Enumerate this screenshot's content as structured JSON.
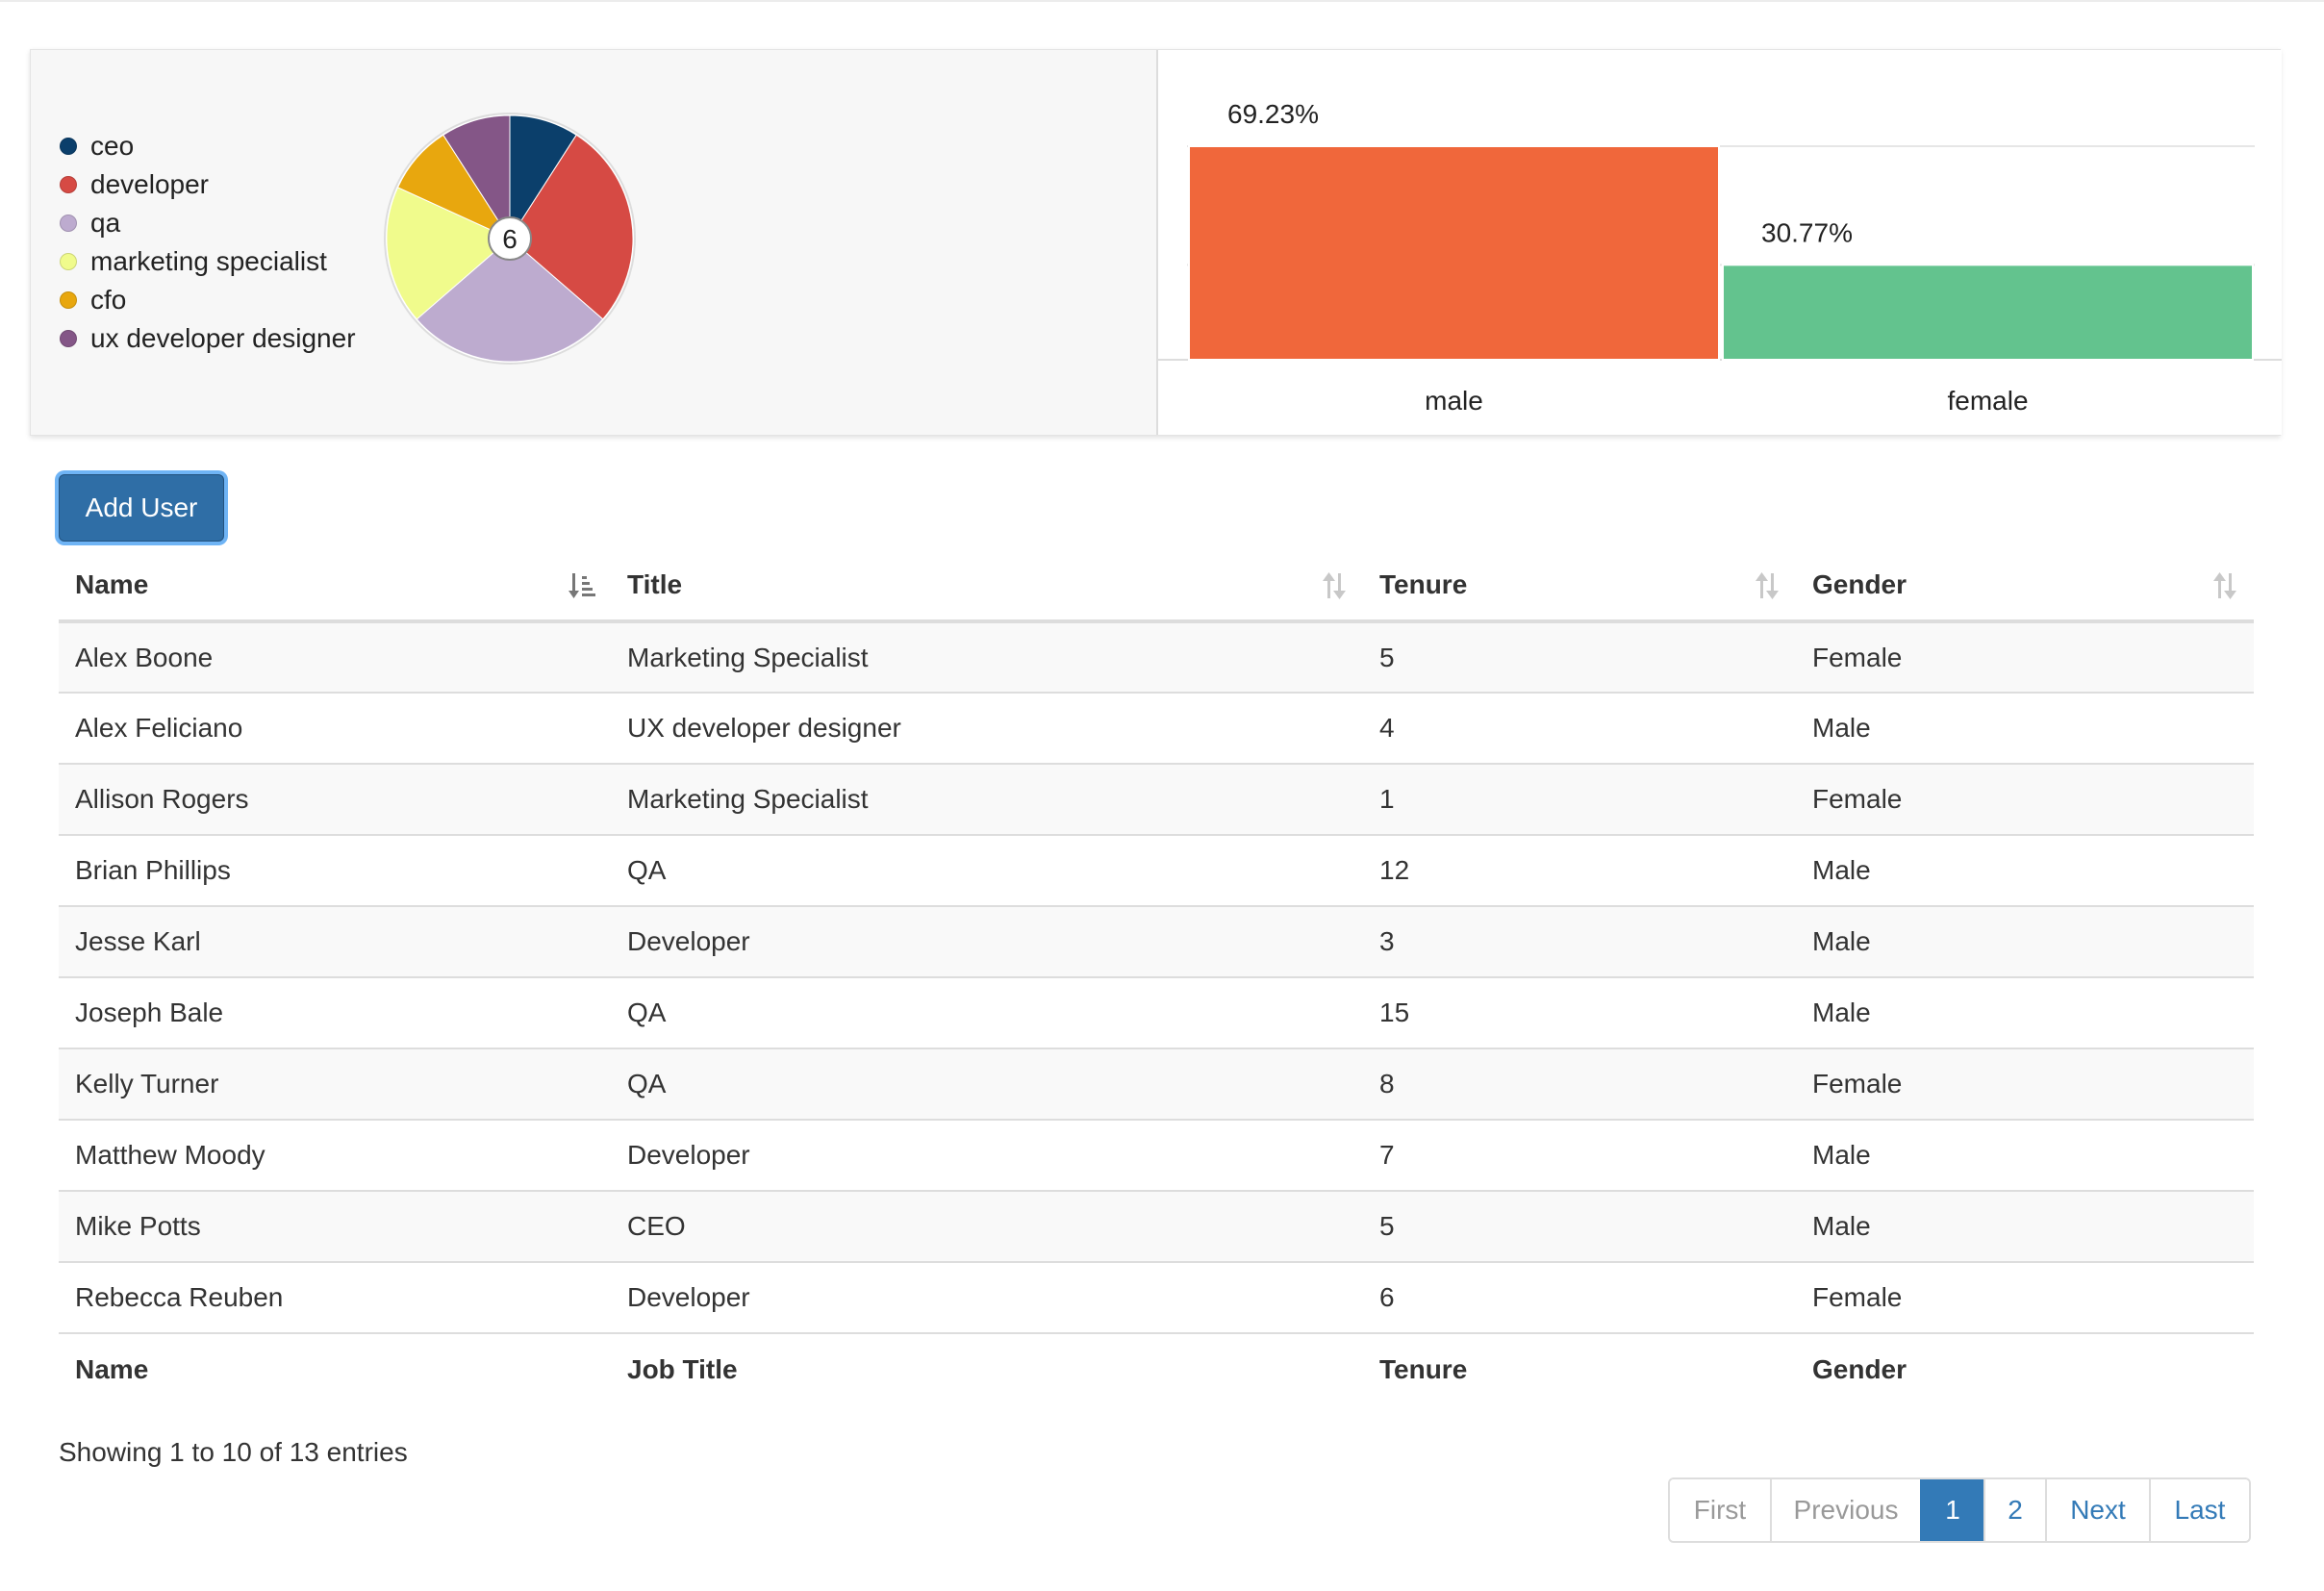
{
  "pie_chart": {
    "center_label": "6",
    "legend": [
      {
        "label": "ceo",
        "color": "#0b3f6b"
      },
      {
        "label": "developer",
        "color": "#d64a44"
      },
      {
        "label": "qa",
        "color": "#bdabcf"
      },
      {
        "label": "marketing specialist",
        "color": "#f0fb8c"
      },
      {
        "label": "cfo",
        "color": "#e8a70e"
      },
      {
        "label": "ux developer designer",
        "color": "#845687"
      }
    ]
  },
  "chart_data": [
    {
      "type": "pie",
      "center_label": "6",
      "categories": [
        "ceo",
        "developer",
        "qa",
        "marketing specialist",
        "cfo",
        "ux developer designer"
      ],
      "values": [
        1,
        3,
        3,
        2,
        1,
        1
      ],
      "colors": [
        "#0b3f6b",
        "#d64a44",
        "#bdabcf",
        "#f0fb8c",
        "#e8a70e",
        "#845687"
      ],
      "legend": "left"
    },
    {
      "type": "bar",
      "categories": [
        "male",
        "female"
      ],
      "values": [
        69.23,
        30.77
      ],
      "data_labels": [
        "69.23%",
        "30.77%"
      ],
      "colors": [
        "#f0673b",
        "#63c38e"
      ],
      "ylim": [
        0,
        100
      ],
      "grid": true
    }
  ],
  "toolbar": {
    "add_user_label": "Add User"
  },
  "table": {
    "headers": [
      "Name",
      "Title",
      "Tenure",
      "Gender"
    ],
    "footers": [
      "Name",
      "Job Title",
      "Tenure",
      "Gender"
    ],
    "rows": [
      [
        "Alex Boone",
        "Marketing Specialist",
        "5",
        "Female"
      ],
      [
        "Alex Feliciano",
        "UX developer designer",
        "4",
        "Male"
      ],
      [
        "Allison Rogers",
        "Marketing Specialist",
        "1",
        "Female"
      ],
      [
        "Brian Phillips",
        "QA",
        "12",
        "Male"
      ],
      [
        "Jesse Karl",
        "Developer",
        "3",
        "Male"
      ],
      [
        "Joseph Bale",
        "QA",
        "15",
        "Male"
      ],
      [
        "Kelly Turner",
        "QA",
        "8",
        "Female"
      ],
      [
        "Matthew Moody",
        "Developer",
        "7",
        "Male"
      ],
      [
        "Mike Potts",
        "CEO",
        "5",
        "Male"
      ],
      [
        "Rebecca Reuben",
        "Developer",
        "6",
        "Female"
      ]
    ]
  },
  "info_text": "Showing 1 to 10 of 13 entries",
  "pagination": {
    "first": "First",
    "previous": "Previous",
    "pages": [
      "1",
      "2"
    ],
    "current": "1",
    "next": "Next",
    "last": "Last"
  }
}
